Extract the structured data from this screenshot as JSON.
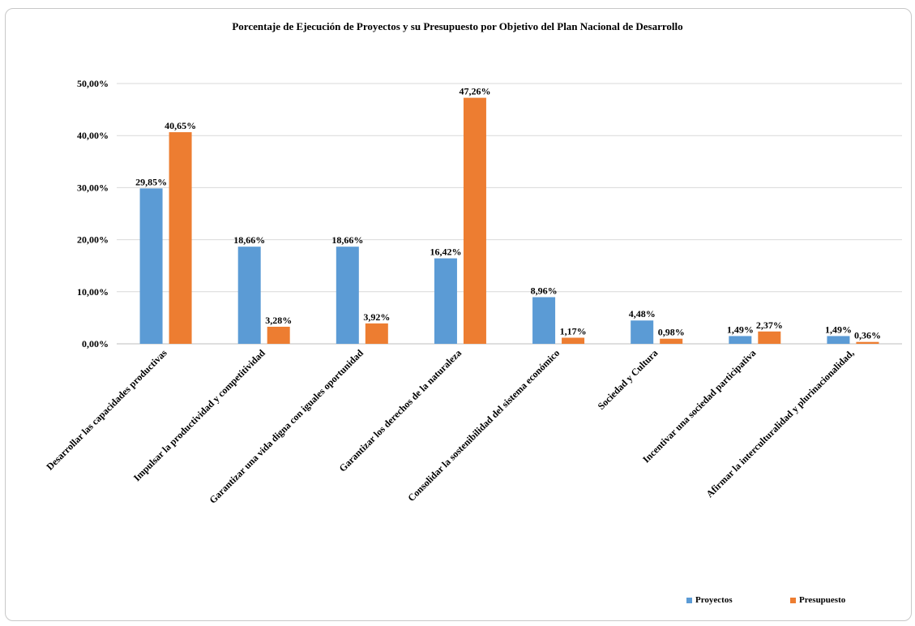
{
  "chart_data": {
    "type": "bar",
    "title": "Porcentaje de Ejecución de Proyectos y su Presupuesto por Objetivo del Plan Nacional de Desarrollo",
    "categories": [
      "Desarrollar las capacidades productivas",
      "Impulsar la productividad y competitividad",
      "Garantizar una vida digna con iguales oportunidad",
      "Garantizar los derechos de la naturaleza",
      "Consolidar la sostenibilidad del sistema económico",
      "Sociedad y Cultura",
      "Incentivar una sociedad participativa",
      "Afirmar la interculturalidad y plurinacionalidad,"
    ],
    "series": [
      {
        "name": "Proyectos",
        "color": "#5b9bd5",
        "values": [
          29.85,
          18.66,
          18.66,
          16.42,
          8.96,
          4.48,
          1.49,
          1.49
        ],
        "labels": [
          "29,85%",
          "18,66%",
          "18,66%",
          "16,42%",
          "8,96%",
          "4,48%",
          "1,49%",
          "1,49%"
        ]
      },
      {
        "name": "Presupuesto",
        "color": "#ed7d31",
        "values": [
          40.65,
          3.28,
          3.92,
          47.26,
          1.17,
          0.98,
          2.37,
          0.36
        ],
        "labels": [
          "40,65%",
          "3,28%",
          "3,92%",
          "47,26%",
          "1,17%",
          "0,98%",
          "2,37%",
          "0,36%"
        ]
      }
    ],
    "ylim": [
      0,
      50
    ],
    "yticks": [
      0,
      10,
      20,
      30,
      40,
      50
    ],
    "ytick_labels": [
      "0,00%",
      "10,00%",
      "20,00%",
      "30,00%",
      "40,00%",
      "50,00%"
    ],
    "grid": true,
    "legend_position": "bottom-right"
  }
}
